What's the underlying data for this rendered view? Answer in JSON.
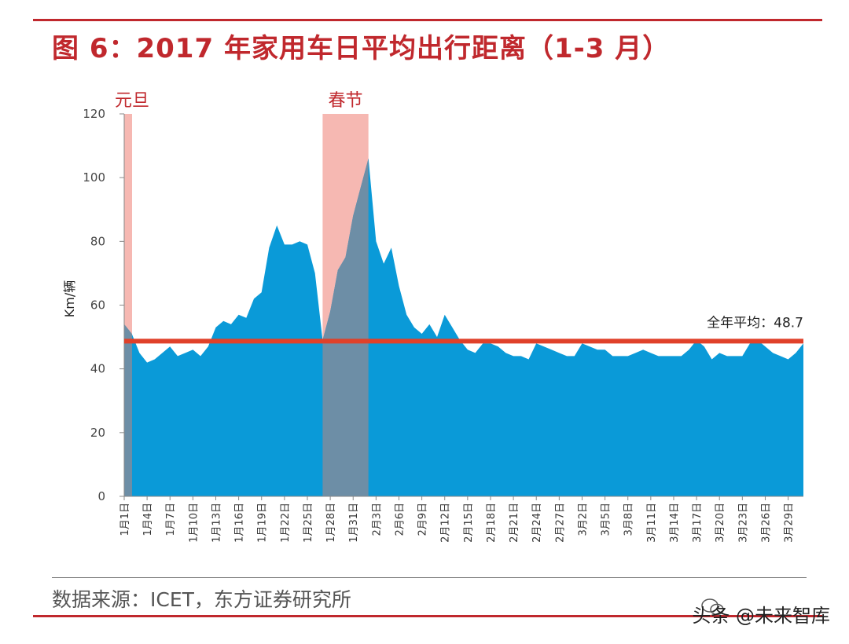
{
  "figure": {
    "title": "图 6：2017 年家用车日平均出行距离（1-3 月）",
    "source": "数据来源：ICET，东方证券研究所",
    "watermark": "头条 @未来智库"
  },
  "colors": {
    "area_fill": "#0a9ad8",
    "holiday_band": "#f6b8b2",
    "holiday_overlap": "#6d8ea6",
    "average_line": "#e0412a",
    "title": "#c0282d"
  },
  "chart_data": {
    "type": "area",
    "ylabel": "Km/辆",
    "xlabel": "",
    "ylim": [
      0,
      120
    ],
    "yticks": [
      0,
      20,
      40,
      60,
      80,
      100,
      120
    ],
    "grid": false,
    "x": [
      "1月1日",
      "1月2日",
      "1月3日",
      "1月4日",
      "1月5日",
      "1月6日",
      "1月7日",
      "1月8日",
      "1月9日",
      "1月10日",
      "1月11日",
      "1月12日",
      "1月13日",
      "1月14日",
      "1月15日",
      "1月16日",
      "1月17日",
      "1月18日",
      "1月19日",
      "1月20日",
      "1月21日",
      "1月22日",
      "1月23日",
      "1月24日",
      "1月25日",
      "1月26日",
      "1月27日",
      "1月28日",
      "1月29日",
      "1月30日",
      "1月31日",
      "2月1日",
      "2月2日",
      "2月3日",
      "2月4日",
      "2月5日",
      "2月6日",
      "2月7日",
      "2月8日",
      "2月9日",
      "2月10日",
      "2月11日",
      "2月12日",
      "2月13日",
      "2月14日",
      "2月15日",
      "2月16日",
      "2月17日",
      "2月18日",
      "2月19日",
      "2月20日",
      "2月21日",
      "2月22日",
      "2月23日",
      "2月24日",
      "2月25日",
      "2月26日",
      "2月27日",
      "2月28日",
      "3月1日",
      "3月2日",
      "3月3日",
      "3月4日",
      "3月5日",
      "3月6日",
      "3月7日",
      "3月8日",
      "3月9日",
      "3月10日",
      "3月11日",
      "3月12日",
      "3月13日",
      "3月14日",
      "3月15日",
      "3月16日",
      "3月17日",
      "3月18日",
      "3月19日",
      "3月20日",
      "3月21日",
      "3月22日",
      "3月23日",
      "3月24日",
      "3月25日",
      "3月26日",
      "3月27日",
      "3月28日",
      "3月29日",
      "3月30日",
      "3月31日"
    ],
    "xtick_labels": [
      "1月1日",
      "1月4日",
      "1月7日",
      "1月10日",
      "1月13日",
      "1月16日",
      "1月19日",
      "1月22日",
      "1月25日",
      "1月28日",
      "1月31日",
      "2月3日",
      "2月6日",
      "2月9日",
      "2月12日",
      "2月15日",
      "2月18日",
      "2月21日",
      "2月24日",
      "2月27日",
      "3月2日",
      "3月5日",
      "3月8日",
      "3月11日",
      "3月14日",
      "3月17日",
      "3月20日",
      "3月23日",
      "3月26日",
      "3月29日"
    ],
    "values": [
      54,
      51,
      45,
      42,
      43,
      45,
      47,
      44,
      45,
      46,
      44,
      47,
      53,
      55,
      54,
      57,
      56,
      62,
      64,
      78,
      85,
      79,
      79,
      80,
      79,
      70,
      49,
      58,
      71,
      75,
      88,
      97,
      106,
      80,
      73,
      78,
      66,
      57,
      53,
      51,
      54,
      50,
      57,
      53,
      49,
      46,
      45,
      48,
      48,
      47,
      45,
      44,
      44,
      43,
      48,
      47,
      46,
      45,
      44,
      44,
      48,
      47,
      46,
      46,
      44,
      44,
      44,
      45,
      46,
      45,
      44,
      44,
      44,
      44,
      46,
      49,
      47,
      43,
      45,
      44,
      44,
      44,
      48,
      49,
      47,
      45,
      44,
      43,
      45,
      48
    ],
    "average": {
      "value": 48.7,
      "label": "全年平均：",
      "value_label": "48.7"
    },
    "highlight_bands": [
      {
        "label": "元旦",
        "start": "1月1日",
        "end": "1月1日"
      },
      {
        "label": "春节",
        "start": "1月27日",
        "end": "2月2日"
      }
    ]
  }
}
